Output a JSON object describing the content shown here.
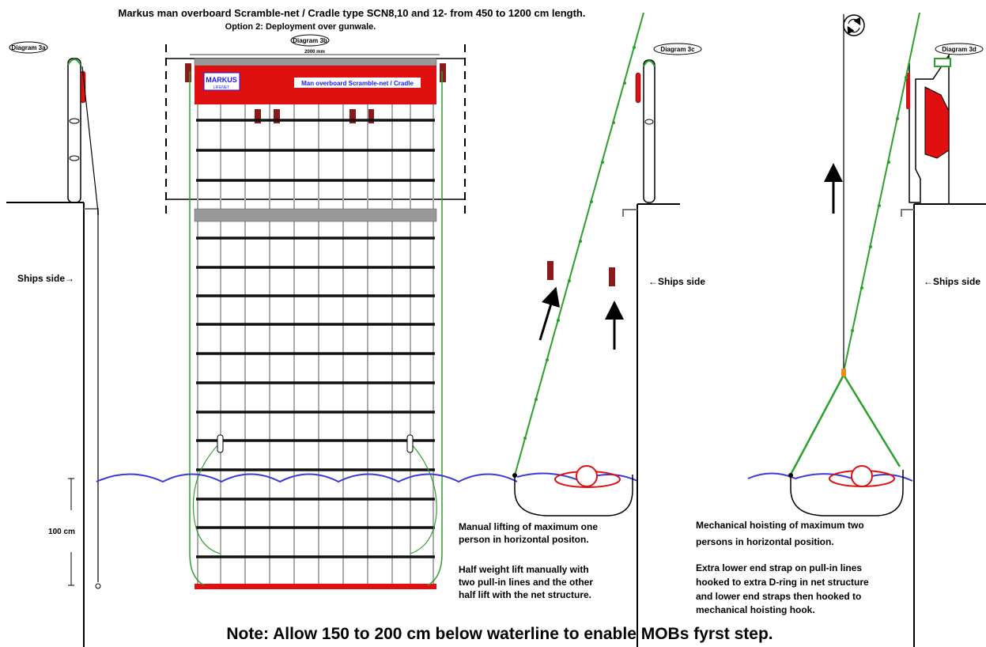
{
  "header": {
    "title": "Markus man overboard Scramble-net / Cradle type SCN8,10 and 12- from 450 to 1200 cm length.",
    "subtitle": "Option 2: Deployment over gunwale."
  },
  "diagrams": {
    "d3a": "Diagram 3a",
    "d3b": "Diagram 3b",
    "d3c": "Diagram 3c",
    "d3d": "Diagram 3d"
  },
  "net": {
    "width_label": "2000 mm",
    "logo": "MARKUS",
    "logo_sub": "LIFENET",
    "banner": "Man overboard Scramble-net / Cradle"
  },
  "labels": {
    "ships_side_right_arrow": "Ships side→",
    "ships_side_left_arrow_c": "←Ships side",
    "ships_side_left_arrow_d": "←Ships side",
    "scale": "100 cm"
  },
  "notes": {
    "manual": [
      "Manual lifting of maximum one",
      "person in horizontal positon.",
      "",
      "Half weight lift manually with",
      "two pull-in lines and the other",
      "half lift with the net structure."
    ],
    "mechanical": [
      "Mechanical hoisting of maximum two",
      "persons in horizontal position.",
      "",
      "Extra lower end strap on pull-in lines",
      "hooked to extra D-ring in net structure",
      "and lower end straps then hooked to",
      "mechanical hoisting hook."
    ],
    "footer": "Note: Allow 150 to 200 cm below waterline to enable MOBs fyrst step."
  },
  "colors": {
    "net_green": "#2ca02c",
    "water_blue": "#3a3ad6",
    "red": "#e01010",
    "dark_red": "#8b1a1a",
    "banner_text": "#1a1aff"
  }
}
